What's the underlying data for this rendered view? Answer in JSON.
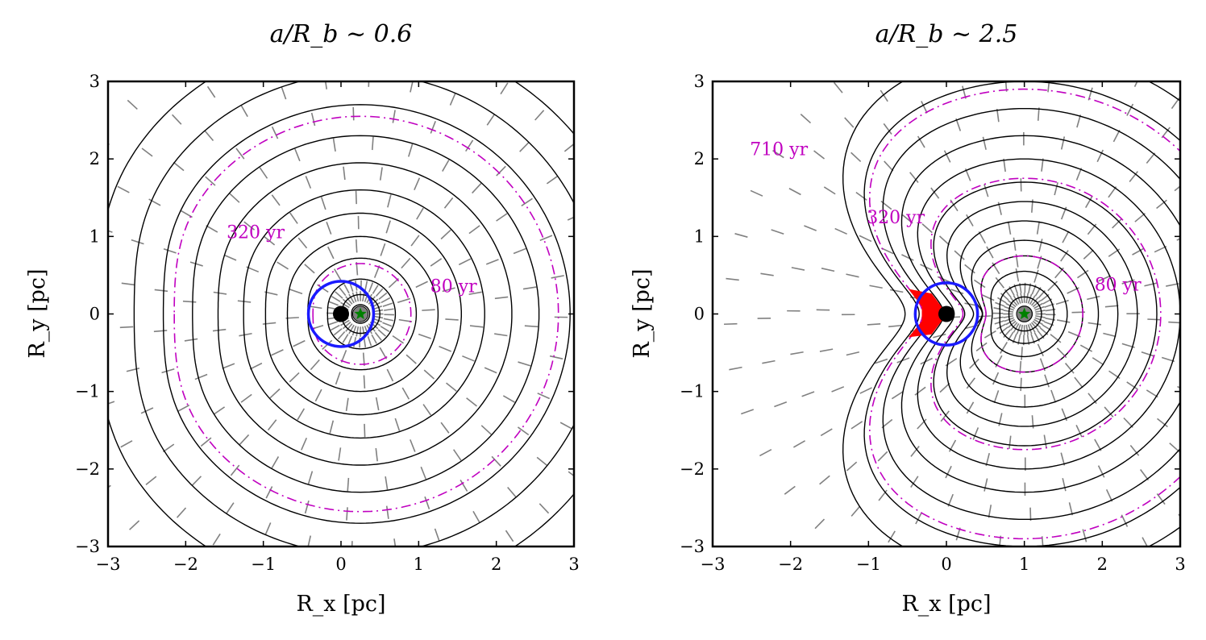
{
  "colors": {
    "contour": "#000000",
    "vector": "#808080",
    "age": "#c000c0",
    "ring": "#1a1aff",
    "shock": "#ff0000",
    "star": "#008000",
    "hole": "#000000"
  },
  "chart_data": [
    {
      "type": "contour",
      "title": "a/R_b ~ 0.6",
      "xlabel": "R_x [pc]",
      "ylabel": "R_y [pc]",
      "xlim": [
        -3,
        3
      ],
      "ylim": [
        -3,
        3
      ],
      "xticks": [
        "−3",
        "−2",
        "−1",
        "0",
        "1",
        "2",
        "3"
      ],
      "yticks": [
        "−3",
        "−2",
        "−1",
        "0",
        "1",
        "2",
        "3"
      ],
      "star": [
        0.25,
        0.0
      ],
      "black_hole": [
        0.0,
        0.0
      ],
      "ring": {
        "center": [
          0.0,
          0.0
        ],
        "radius": 0.42
      },
      "age_labels": [
        {
          "text": "320 yr",
          "x": -1.1,
          "y": 0.98
        },
        {
          "text": "80 yr",
          "x": 1.45,
          "y": 0.28
        }
      ],
      "wavefront_radii": [
        0.12,
        0.25,
        0.45,
        0.72,
        1.0,
        1.3,
        1.6,
        1.95,
        2.3,
        2.7,
        3.1,
        3.6
      ],
      "age_contour_radii": [
        0.65,
        2.55
      ],
      "shock": false
    },
    {
      "type": "contour",
      "title": "a/R_b ~ 2.5",
      "xlabel": "R_x [pc]",
      "ylabel": "R_y [pc]",
      "xlim": [
        -3,
        3
      ],
      "ylim": [
        -3,
        3
      ],
      "xticks": [
        "−3",
        "−2",
        "−1",
        "0",
        "1",
        "2",
        "3"
      ],
      "yticks": [
        "−3",
        "−2",
        "−1",
        "0",
        "1",
        "2",
        "3"
      ],
      "star": [
        1.0,
        0.0
      ],
      "black_hole": [
        0.0,
        0.0
      ],
      "ring": {
        "center": [
          0.0,
          0.0
        ],
        "radius": 0.4
      },
      "age_labels": [
        {
          "text": "710 yr",
          "x": -2.15,
          "y": 2.05
        },
        {
          "text": "320 yr",
          "x": -0.65,
          "y": 1.17
        },
        {
          "text": "80 yr",
          "x": 2.2,
          "y": 0.3
        }
      ],
      "wavefront_radii": [
        0.1,
        0.22,
        0.38,
        0.55,
        0.75,
        0.95,
        1.2,
        1.45,
        1.7,
        2.0,
        2.3,
        2.65,
        3.0,
        3.4
      ],
      "age_contour_radii": [
        0.75,
        1.75,
        2.9
      ],
      "shock": true
    }
  ]
}
